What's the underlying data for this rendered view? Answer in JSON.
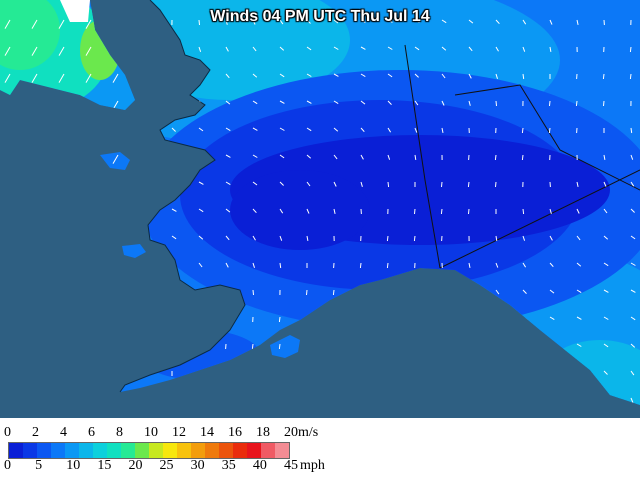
{
  "title": "Winds 04 PM UTC Thu Jul 14",
  "colors": {
    "ocean": "#2e5f82",
    "land_fill": "#1a6cf0",
    "arrow": "#ffffff",
    "boundary": "#111111"
  },
  "legend": {
    "ms_unit": "m/s",
    "mph_unit": "mph",
    "ms_ticks": [
      "0",
      "2",
      "4",
      "6",
      "8",
      "10",
      "12",
      "14",
      "16",
      "18",
      "20"
    ],
    "mph_ticks": [
      "0",
      "5",
      "10",
      "15",
      "20",
      "25",
      "30",
      "35",
      "40",
      "45"
    ],
    "swatches": [
      "#0a1fd6",
      "#0a38e6",
      "#0b57f2",
      "#0c78f7",
      "#0b98f4",
      "#0bb6ea",
      "#0cd0dc",
      "#10e0c0",
      "#25ea95",
      "#6be84d",
      "#c7e820",
      "#f7e70d",
      "#f7c20d",
      "#f39d0c",
      "#ef7a0c",
      "#ec540c",
      "#ea2c0c",
      "#e8141c",
      "#f05a64",
      "#f48c94"
    ]
  }
}
